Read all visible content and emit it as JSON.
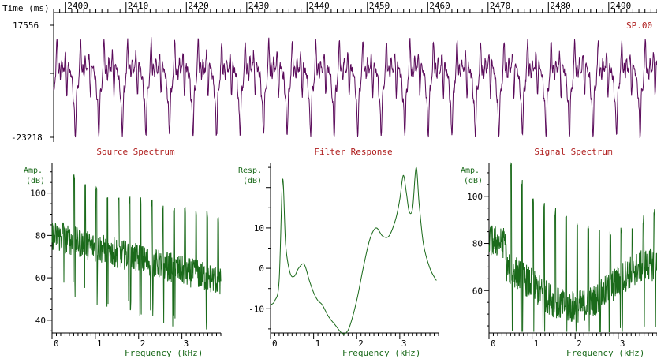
{
  "colors": {
    "wave": "#5a0a5a",
    "spectrum": "#1a6a1a",
    "axis": "#000000",
    "title": "#b02020",
    "label_green": "#1a6a1a",
    "tick_text": "#000000"
  },
  "waveform": {
    "time_axis_label": "Time (ms)",
    "time_ticks": [
      "2400",
      "2410",
      "2420",
      "2430",
      "2440",
      "2450",
      "2460",
      "2470",
      "2480",
      "2490"
    ],
    "ymax_label": "17556",
    "ymin_label": "-23218",
    "channel_label": "SP.00",
    "x_range_ms": [
      2398,
      2498
    ],
    "y_range": [
      -23218,
      17556
    ],
    "period_ms": 3.9
  },
  "panels": {
    "source": {
      "title": "Source Spectrum",
      "ylabel_line1": "Amp.",
      "ylabel_line2": "(dB)",
      "xlabel": "Frequency (kHz)",
      "yticks": [
        "40",
        "60",
        "80",
        "100"
      ],
      "xticks": [
        "0",
        "1",
        "2",
        "3"
      ]
    },
    "filter": {
      "title": "Filter Response",
      "ylabel_line1": "Resp.",
      "ylabel_line2": "(dB)",
      "xlabel": "Frequency (kHz)",
      "yticks": [
        "-10",
        "0",
        "10"
      ],
      "xticks": [
        "0",
        "1",
        "2",
        "3"
      ]
    },
    "signal": {
      "title": "Signal Spectrum",
      "ylabel_line1": "Amp.",
      "ylabel_line2": "(dB)",
      "xlabel": "Frequency (kHz)",
      "yticks": [
        "60",
        "80",
        "100"
      ],
      "xticks": [
        "0",
        "1",
        "2",
        "3"
      ]
    }
  },
  "chart_data": [
    {
      "type": "line",
      "name_hint": "waveform",
      "xlabel": "Time (ms)",
      "xlim": [
        2398,
        2498
      ],
      "ylim": [
        -23218,
        17556
      ],
      "periodic_component": {
        "period_ms": 3.9
      }
    },
    {
      "type": "line",
      "title": "Source Spectrum",
      "xlabel": "Frequency (kHz)",
      "ylabel": "Amp. (dB)",
      "xlim": [
        0,
        3.9
      ],
      "ylim": [
        34,
        114
      ],
      "harmonic_spacing_khz": 0.256,
      "harmonic_peaks_db": [
        88,
        110,
        106,
        103,
        101,
        100,
        99,
        98,
        97,
        96,
        95,
        94,
        93,
        92,
        90,
        88
      ]
    },
    {
      "type": "line",
      "title": "Filter Response",
      "xlabel": "Frequency (kHz)",
      "ylabel": "Resp. (dB)",
      "xlim": [
        0,
        3.9
      ],
      "ylim": [
        -16,
        26
      ],
      "x": [
        0.0,
        0.1,
        0.2,
        0.28,
        0.35,
        0.45,
        0.55,
        0.65,
        0.78,
        0.9,
        1.0,
        1.1,
        1.2,
        1.35,
        1.5,
        1.65,
        1.75,
        1.85,
        2.0,
        2.15,
        2.3,
        2.45,
        2.6,
        2.75,
        2.9,
        3.0,
        3.08,
        3.15,
        3.22,
        3.3,
        3.38,
        3.45,
        3.55,
        3.7,
        3.85
      ],
      "y": [
        -9,
        -8,
        -3,
        22,
        6,
        -1,
        -2,
        0,
        1,
        -3,
        -6,
        -8,
        -9,
        -12,
        -14,
        -16,
        -16,
        -14,
        -8,
        0,
        7,
        10,
        8,
        8,
        12,
        17,
        23,
        19,
        14,
        15,
        25,
        16,
        6,
        0,
        -3
      ]
    },
    {
      "type": "line",
      "title": "Signal Spectrum",
      "xlabel": "Frequency (kHz)",
      "ylabel": "Amp. (dB)",
      "xlim": [
        0,
        3.9
      ],
      "ylim": [
        42,
        114
      ],
      "harmonic_spacing_khz": 0.256,
      "harmonic_peaks_db": [
        82,
        116,
        108,
        100,
        98,
        95,
        92,
        90,
        88,
        86,
        87,
        88,
        89,
        92,
        95,
        98
      ]
    }
  ]
}
